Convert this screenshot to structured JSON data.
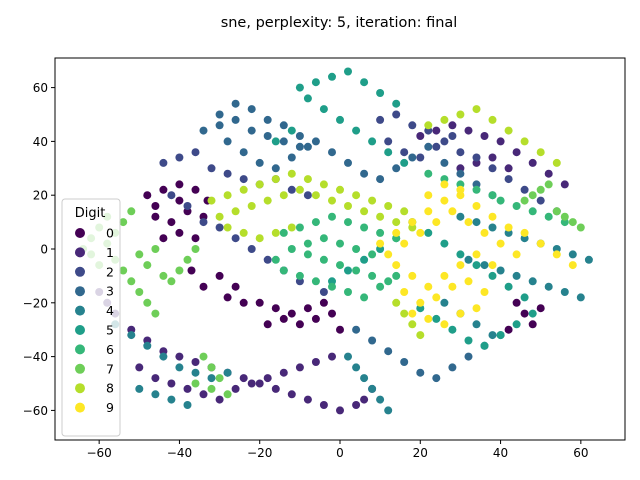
{
  "chart_data": {
    "type": "scatter",
    "title": "sne, perplexity: 5, iteration: final",
    "xlabel": "",
    "ylabel": "",
    "xlim": [
      -71,
      71
    ],
    "ylim": [
      -71,
      71
    ],
    "xticks": [
      -60,
      -40,
      -20,
      0,
      20,
      40,
      60
    ],
    "yticks": [
      -60,
      -40,
      -20,
      0,
      20,
      40,
      60
    ],
    "xtick_labels": [
      "−60",
      "−40",
      "−20",
      "0",
      "20",
      "40",
      "60"
    ],
    "ytick_labels": [
      "−60",
      "−40",
      "−20",
      "0",
      "20",
      "40",
      "60"
    ],
    "grid": false,
    "legend": {
      "title": "Digit",
      "placement": "center-left",
      "entries": [
        "0",
        "1",
        "2",
        "3",
        "4",
        "5",
        "6",
        "7",
        "8",
        "9"
      ]
    },
    "colors": [
      "#440154",
      "#482878",
      "#3e4a89",
      "#31688e",
      "#26828e",
      "#1f9e89",
      "#35b779",
      "#6ece58",
      "#b5de2b",
      "#fde725"
    ],
    "series": [
      {
        "name": "0",
        "x": [
          -48,
          -44,
          -40,
          -36,
          -33,
          -46,
          -42,
          -38,
          -34,
          -44,
          -40,
          -36,
          -37,
          -30,
          -26,
          -34,
          -28,
          -24,
          -20,
          -16,
          -12,
          -8,
          -4,
          -18,
          -14,
          -10,
          -6,
          -2,
          0,
          44,
          46,
          48,
          50,
          42,
          -46,
          -40
        ],
        "y": [
          20,
          22,
          24,
          22,
          18,
          12,
          10,
          14,
          12,
          4,
          6,
          4,
          -8,
          -10,
          -14,
          -14,
          -18,
          -20,
          -20,
          -22,
          -24,
          -22,
          -20,
          -28,
          -26,
          -28,
          -26,
          -24,
          -30,
          -20,
          -24,
          -28,
          -22,
          -30,
          16,
          18
        ]
      },
      {
        "name": "1",
        "x": [
          -60,
          -58,
          -56,
          -52,
          -48,
          -44,
          -40,
          -36,
          -32,
          -28,
          -24,
          -20,
          -16,
          -12,
          -8,
          -4,
          0,
          4,
          6,
          8,
          -50,
          -46,
          -42,
          -38,
          -34,
          -30,
          -26,
          -22,
          -18,
          -14,
          -10,
          -6,
          -2,
          20,
          24,
          28,
          32,
          36,
          40,
          44,
          48,
          52,
          56,
          30,
          34,
          38,
          42
        ],
        "y": [
          -16,
          -20,
          -24,
          -30,
          -34,
          -38,
          -40,
          -42,
          -44,
          -46,
          -48,
          -50,
          -52,
          -54,
          -56,
          -58,
          -60,
          -58,
          -56,
          -52,
          -44,
          -48,
          -50,
          -52,
          -54,
          -56,
          -52,
          -50,
          -48,
          -46,
          -44,
          -42,
          -40,
          42,
          44,
          46,
          44,
          42,
          40,
          36,
          32,
          28,
          24,
          30,
          32,
          34,
          30
        ]
      },
      {
        "name": "2",
        "x": [
          -44,
          -40,
          -36,
          -32,
          -28,
          -24,
          -20,
          -16,
          -12,
          -8,
          -42,
          -38,
          -34,
          -30,
          -26,
          -22,
          -18,
          -14,
          -10,
          -4,
          10,
          14,
          18,
          22,
          26,
          30,
          34,
          38,
          42,
          46,
          50,
          54,
          12,
          16,
          20,
          24,
          28
        ],
        "y": [
          32,
          34,
          36,
          30,
          28,
          26,
          24,
          26,
          22,
          20,
          20,
          16,
          10,
          8,
          4,
          0,
          -4,
          -8,
          -12,
          -16,
          48,
          50,
          46,
          44,
          40,
          36,
          34,
          30,
          26,
          22,
          18,
          14,
          40,
          36,
          34,
          38,
          42
        ]
      },
      {
        "name": "3",
        "x": [
          -30,
          -26,
          -22,
          -18,
          -14,
          -10,
          -6,
          -2,
          2,
          6,
          10,
          14,
          18,
          22,
          26,
          30,
          34,
          38,
          -28,
          -24,
          -20,
          -16,
          -12,
          -8,
          -34,
          -30,
          -26,
          -22,
          -18,
          -14,
          -10,
          4,
          8,
          12,
          16,
          20,
          24,
          28,
          32,
          36,
          40
        ],
        "y": [
          50,
          54,
          52,
          48,
          46,
          42,
          40,
          36,
          32,
          28,
          26,
          30,
          34,
          38,
          32,
          28,
          24,
          20,
          40,
          36,
          32,
          30,
          34,
          38,
          44,
          46,
          48,
          44,
          42,
          40,
          38,
          -30,
          -34,
          -38,
          -42,
          -46,
          -48,
          -44,
          -40,
          -36,
          -32
        ]
      },
      {
        "name": "4",
        "x": [
          -56,
          -52,
          -48,
          -44,
          -40,
          -36,
          -32,
          -28,
          -50,
          -46,
          -42,
          -38,
          2,
          4,
          6,
          8,
          10,
          12,
          30,
          34,
          38,
          42,
          46,
          50,
          54,
          58,
          62,
          32,
          36,
          40,
          44,
          48,
          52,
          56,
          60,
          26,
          30,
          34,
          38
        ],
        "y": [
          -28,
          -32,
          -36,
          -40,
          -44,
          -46,
          -48,
          -46,
          -52,
          -54,
          -56,
          -58,
          -40,
          -44,
          -48,
          -52,
          -56,
          -60,
          12,
          10,
          8,
          6,
          4,
          2,
          0,
          -2,
          -4,
          -4,
          -6,
          -8,
          -10,
          -12,
          -14,
          -16,
          -18,
          -20,
          -24,
          -28,
          -32
        ]
      },
      {
        "name": "5",
        "x": [
          -10,
          -6,
          -2,
          2,
          6,
          10,
          14,
          -8,
          -4,
          0,
          4,
          8,
          12,
          16,
          -12,
          -16,
          18,
          22,
          26,
          30,
          34,
          38,
          42,
          46,
          20,
          24,
          28,
          32,
          36,
          40,
          44,
          48,
          14,
          10,
          6,
          2,
          -2
        ],
        "y": [
          60,
          62,
          64,
          66,
          62,
          58,
          54,
          56,
          52,
          48,
          44,
          40,
          36,
          32,
          44,
          40,
          10,
          6,
          2,
          -2,
          -6,
          -10,
          -14,
          -18,
          -22,
          -26,
          -30,
          -34,
          -36,
          -32,
          -28,
          -24,
          4,
          0,
          -4,
          -8,
          -12
        ]
      },
      {
        "name": "6",
        "x": [
          -14,
          -10,
          -6,
          -2,
          2,
          6,
          10,
          14,
          -12,
          -8,
          -4,
          0,
          4,
          8,
          12,
          -16,
          -14,
          -10,
          -6,
          -2,
          2,
          6,
          10,
          14,
          -8,
          -4,
          0,
          4,
          8,
          22,
          26,
          30,
          34,
          38,
          40,
          44,
          48,
          52,
          56
        ],
        "y": [
          6,
          8,
          10,
          12,
          10,
          8,
          6,
          4,
          0,
          -2,
          -4,
          -6,
          -8,
          -10,
          -12,
          -4,
          -8,
          -10,
          -12,
          -14,
          -16,
          -18,
          -14,
          -10,
          2,
          4,
          2,
          0,
          -2,
          28,
          26,
          24,
          22,
          20,
          18,
          16,
          14,
          12,
          10
        ]
      },
      {
        "name": "7",
        "x": [
          -64,
          -62,
          -60,
          -58,
          -56,
          -54,
          -52,
          -50,
          -48,
          -46,
          -62,
          -60,
          -58,
          -56,
          -54,
          -52,
          -50,
          -48,
          -46,
          -44,
          -42,
          -40,
          -38,
          -36,
          -34,
          -32,
          -30,
          46,
          48,
          50,
          52,
          54,
          56,
          58,
          60,
          -36,
          -32,
          -28
        ],
        "y": [
          0,
          4,
          8,
          12,
          -4,
          -8,
          -12,
          -16,
          -20,
          -24,
          -2,
          -6,
          2,
          6,
          10,
          14,
          -2,
          -6,
          0,
          -10,
          -12,
          -8,
          -4,
          0,
          -40,
          -44,
          -48,
          18,
          20,
          22,
          24,
          14,
          12,
          10,
          8,
          -50,
          -52,
          -54
        ]
      },
      {
        "name": "8",
        "x": [
          -32,
          -28,
          -24,
          -20,
          -16,
          -12,
          -8,
          -4,
          0,
          4,
          8,
          12,
          16,
          -30,
          -26,
          -22,
          -18,
          -14,
          -10,
          -6,
          -2,
          2,
          6,
          10,
          14,
          18,
          -28,
          -24,
          -20,
          -16,
          -12,
          22,
          26,
          30,
          34,
          38,
          42,
          46,
          50,
          54,
          14,
          16,
          18,
          20
        ],
        "y": [
          18,
          20,
          22,
          24,
          26,
          28,
          26,
          24,
          22,
          20,
          18,
          16,
          14,
          12,
          14,
          16,
          18,
          20,
          22,
          20,
          18,
          16,
          14,
          12,
          10,
          8,
          8,
          6,
          4,
          6,
          8,
          46,
          48,
          50,
          52,
          48,
          44,
          40,
          36,
          32,
          -20,
          -24,
          -28,
          -32
        ]
      },
      {
        "name": "9",
        "x": [
          10,
          14,
          18,
          22,
          26,
          30,
          34,
          38,
          42,
          12,
          16,
          20,
          24,
          28,
          32,
          36,
          40,
          44,
          14,
          18,
          22,
          26,
          30,
          34,
          38,
          16,
          20,
          24,
          28,
          32,
          36,
          18,
          22,
          26,
          30,
          34,
          22,
          26,
          30,
          46,
          50,
          54,
          58
        ],
        "y": [
          2,
          6,
          10,
          14,
          18,
          20,
          16,
          12,
          8,
          -2,
          2,
          6,
          10,
          14,
          10,
          6,
          2,
          -2,
          -6,
          -10,
          -14,
          -10,
          -6,
          -2,
          -6,
          -16,
          -20,
          -18,
          -14,
          -12,
          -16,
          -24,
          -26,
          -28,
          -24,
          -22,
          20,
          24,
          22,
          6,
          2,
          -2,
          -6
        ]
      }
    ]
  }
}
